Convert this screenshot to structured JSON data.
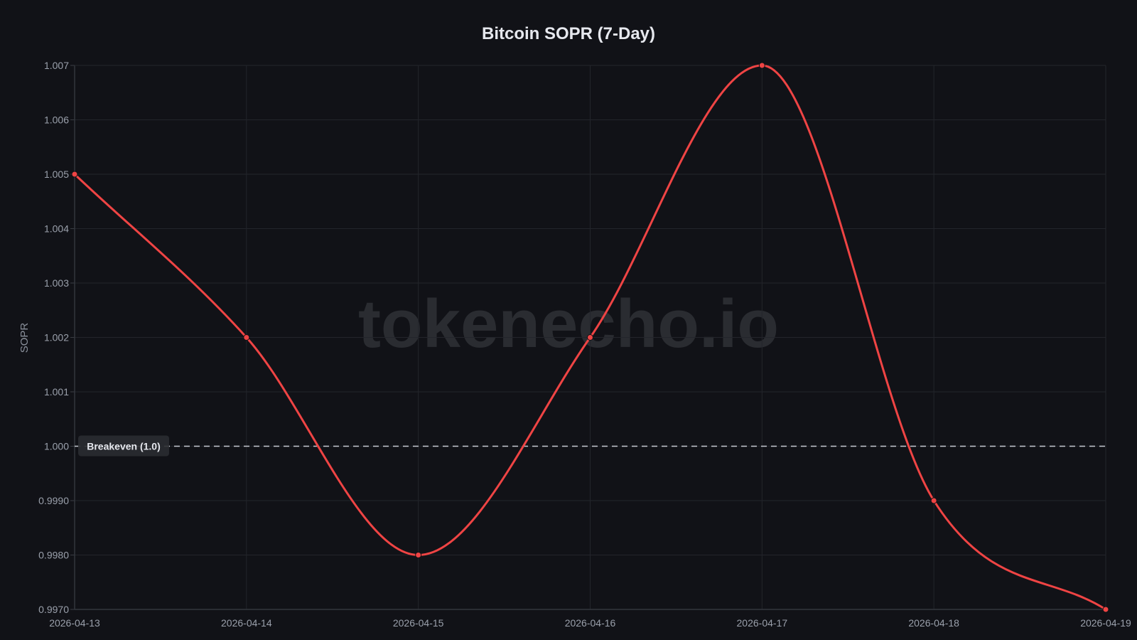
{
  "chart_data": {
    "type": "line",
    "title": "Bitcoin SOPR (7-Day)",
    "xlabel": "",
    "ylabel": "SOPR",
    "x": [
      "2026-04-13",
      "2026-04-14",
      "2026-04-15",
      "2026-04-16",
      "2026-04-17",
      "2026-04-18",
      "2026-04-19"
    ],
    "series": [
      {
        "values": [
          1.005,
          1.002,
          0.998,
          1.002,
          1.007,
          0.999,
          0.997
        ],
        "color": "#ef4444"
      }
    ],
    "ylim": [
      0.997,
      1.007
    ],
    "yticks": [
      "0.9970",
      "0.9980",
      "0.9990",
      "1.000",
      "1.001",
      "1.002",
      "1.003",
      "1.004",
      "1.005",
      "1.006",
      "1.007"
    ],
    "grid": true,
    "reference_line": {
      "value": 1.0,
      "label": "Breakeven (1.0)",
      "style": "dashed",
      "color": "#c8cbd2"
    },
    "watermark": "tokenecho.io"
  }
}
